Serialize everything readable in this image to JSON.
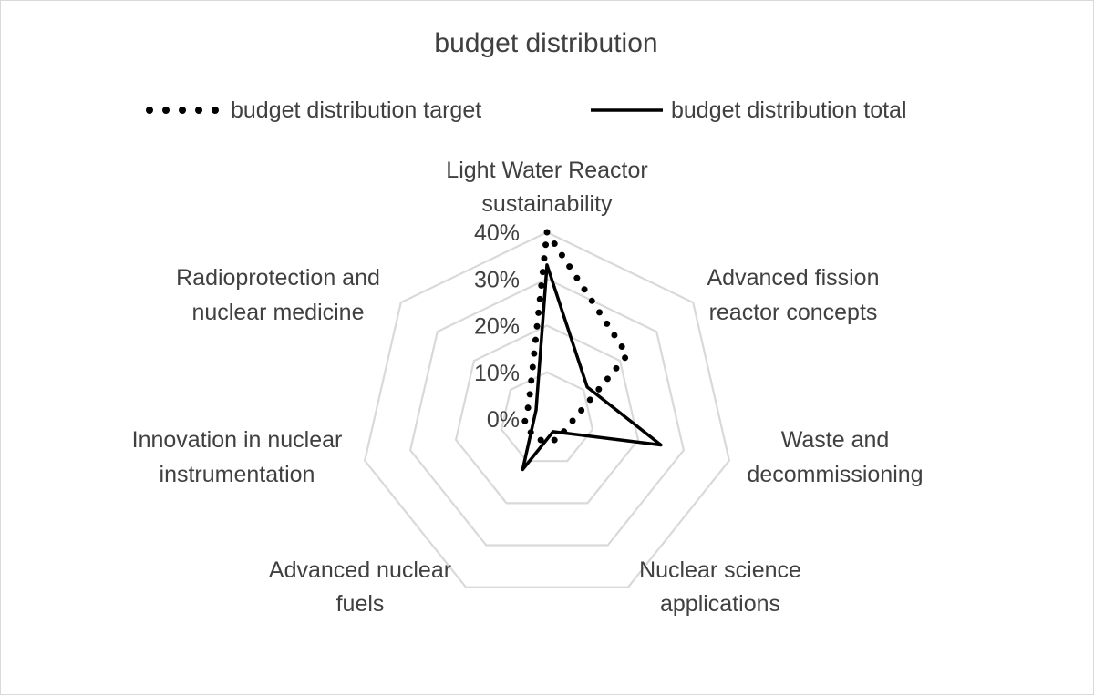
{
  "chart_data": {
    "type": "radar",
    "title": "budget distribution",
    "categories": [
      "Light Water Reactor sustainability",
      "Advanced fission reactor concepts",
      "Waste and decommissioning",
      "Nuclear science applications",
      "Advanced nuclear fuels",
      "Innovation in nuclear instrumentation",
      "Radioprotection and nuclear medicine"
    ],
    "category_lines": [
      [
        "Light Water Reactor",
        "sustainability"
      ],
      [
        "Advanced fission",
        "reactor concepts"
      ],
      [
        "Waste and",
        "decommissioning"
      ],
      [
        "Nuclear science",
        "applications"
      ],
      [
        "Advanced nuclear",
        "fuels"
      ],
      [
        "Innovation in nuclear",
        "instrumentation"
      ],
      [
        "Radioprotection and",
        "nuclear medicine"
      ]
    ],
    "series": [
      {
        "name": "budget distribution target",
        "style": "dotted",
        "values": [
          40,
          22,
          5,
          5,
          5,
          5,
          5
        ]
      },
      {
        "name": "budget distribution total",
        "style": "solid",
        "values": [
          33,
          11,
          25,
          3,
          12,
          3,
          3
        ]
      }
    ],
    "r_axis": {
      "min": 0,
      "max": 40,
      "step": 10,
      "tick_labels": [
        "0%",
        "10%",
        "20%",
        "30%",
        "40%"
      ]
    },
    "grid": true,
    "legend_position": "top",
    "colors": {
      "grid": "#d9d9d9",
      "series": "#000000",
      "text": "#404040",
      "border": "#d9d9d9"
    }
  }
}
